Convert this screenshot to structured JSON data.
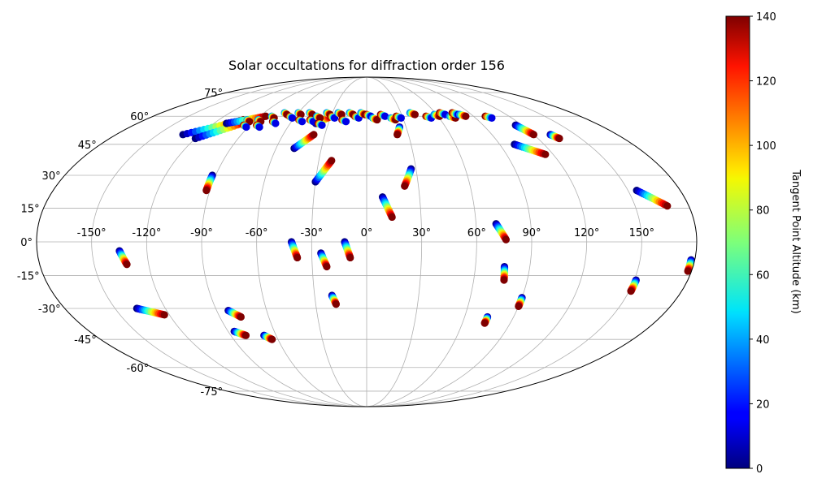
{
  "chart_data": {
    "type": "scatter",
    "projection": "mollweide",
    "title": "Solar occultations for diffraction order 156",
    "grid": true,
    "lon_ticks": [
      "-150°",
      "-120°",
      "-90°",
      "-60°",
      "-30°",
      "0°",
      "30°",
      "60°",
      "90°",
      "120°",
      "150°"
    ],
    "lon_tick_values": [
      -150,
      -120,
      -90,
      -60,
      -30,
      0,
      30,
      60,
      90,
      120,
      150
    ],
    "lat_ticks": [
      "75°",
      "60°",
      "45°",
      "30°",
      "15°",
      "0°",
      "-15°",
      "-30°",
      "-45°",
      "-60°",
      "-75°"
    ],
    "lat_tick_values": [
      75,
      60,
      45,
      30,
      15,
      0,
      -15,
      -30,
      -45,
      -60,
      -75
    ],
    "colorbar": {
      "label": "Tangent Point Altitude (km)",
      "min": 0,
      "max": 140,
      "ticks": [
        "0",
        "20",
        "40",
        "60",
        "80",
        "100",
        "120",
        "140"
      ],
      "tick_values": [
        0,
        20,
        40,
        60,
        80,
        100,
        120,
        140
      ],
      "colormap": "jet"
    },
    "point_series": [
      {
        "lon": -97,
        "lat": 58
      },
      {
        "lon": -95,
        "lat": 55
      },
      {
        "lon": -88,
        "lat": 58
      },
      {
        "lon": -85,
        "lat": 55
      },
      {
        "lon": -80,
        "lat": 60
      },
      {
        "lon": -75,
        "lat": 57
      },
      {
        "lon": -72,
        "lat": 62
      },
      {
        "lon": -65,
        "lat": 60
      },
      {
        "lon": -60,
        "lat": 62
      },
      {
        "lon": -55,
        "lat": 58
      },
      {
        "lon": -50,
        "lat": 62
      },
      {
        "lon": -46,
        "lat": 58
      },
      {
        "lon": -42,
        "lat": 60
      },
      {
        "lon": -38,
        "lat": 56
      },
      {
        "lon": -35,
        "lat": 62
      },
      {
        "lon": -30,
        "lat": 60
      },
      {
        "lon": -25,
        "lat": 62
      },
      {
        "lon": -20,
        "lat": 58
      },
      {
        "lon": -15,
        "lat": 62
      },
      {
        "lon": -10,
        "lat": 60
      },
      {
        "lon": -5,
        "lat": 62
      },
      {
        "lon": 0,
        "lat": 61
      },
      {
        "lon": 5,
        "lat": 59
      },
      {
        "lon": 12,
        "lat": 61
      },
      {
        "lon": 20,
        "lat": 59
      },
      {
        "lon": 25,
        "lat": 60
      },
      {
        "lon": 38,
        "lat": 62
      },
      {
        "lon": 50,
        "lat": 60
      },
      {
        "lon": 58,
        "lat": 61
      },
      {
        "lon": 64,
        "lat": 62
      },
      {
        "lon": 70,
        "lat": 60
      },
      {
        "lon": 75,
        "lat": 62
      },
      {
        "lon": 80,
        "lat": 61
      },
      {
        "lon": 100,
        "lat": 60
      }
    ],
    "tracks": [
      {
        "lon_start": -132,
        "lat_start": 50,
        "lon_end": -100,
        "lat_end": 58
      },
      {
        "lon_start": -120,
        "lat_start": 48,
        "lon_end": -95,
        "lat_end": 57
      },
      {
        "lon_start": -110,
        "lat_start": 56,
        "lon_end": -85,
        "lat_end": 60
      },
      {
        "lon_start": -92,
        "lat_start": 30,
        "lon_end": -92,
        "lat_end": 23
      },
      {
        "lon_start": -48,
        "lat_start": 43,
        "lon_end": -38,
        "lat_end": 50
      },
      {
        "lon_start": -30,
        "lat_start": 27,
        "lon_end": -22,
        "lat_end": 37
      },
      {
        "lon_start": -40,
        "lat_start": 56,
        "lon_end": -30,
        "lat_end": 60
      },
      {
        "lon_start": 25,
        "lat_start": 54,
        "lon_end": 22,
        "lat_end": 50
      },
      {
        "lon_start": 27,
        "lat_start": 33,
        "lon_end": 22,
        "lat_end": 25
      },
      {
        "lon_start": 9,
        "lat_start": 20,
        "lon_end": 14,
        "lat_end": 11
      },
      {
        "lon_start": 100,
        "lat_start": 45,
        "lon_end": 115,
        "lat_end": 40
      },
      {
        "lon_start": 115,
        "lat_start": 55,
        "lon_end": 120,
        "lat_end": 50
      },
      {
        "lon_start": 132,
        "lat_start": 50,
        "lon_end": 135,
        "lat_end": 48
      },
      {
        "lon_start": 155,
        "lat_start": 23,
        "lon_end": 168,
        "lat_end": 16
      },
      {
        "lon_start": 71,
        "lat_start": 8,
        "lon_end": 76,
        "lat_end": 1
      },
      {
        "lon_start": 76,
        "lat_start": -11,
        "lon_end": 77,
        "lat_end": -17
      },
      {
        "lon_start": 90,
        "lat_start": -25,
        "lon_end": 90,
        "lat_end": -29
      },
      {
        "lon_start": 74,
        "lat_start": -34,
        "lon_end": 74,
        "lat_end": -37
      },
      {
        "lon_start": 151,
        "lat_start": -17,
        "lon_end": 151,
        "lat_end": -22
      },
      {
        "lon_start": 178,
        "lat_start": -8,
        "lon_end": 178,
        "lat_end": -13
      },
      {
        "lon_start": -135,
        "lat_start": -4,
        "lon_end": -132,
        "lat_end": -10
      },
      {
        "lon_start": -41,
        "lat_start": 0,
        "lon_end": -38,
        "lat_end": -7
      },
      {
        "lon_start": -25,
        "lat_start": -5,
        "lon_end": -22,
        "lat_end": -11
      },
      {
        "lon_start": -12,
        "lat_start": 0,
        "lon_end": -9,
        "lat_end": -7
      },
      {
        "lon_start": -20,
        "lat_start": -24,
        "lon_end": -18,
        "lat_end": -28
      },
      {
        "lon_start": -137,
        "lat_start": -30,
        "lon_end": -123,
        "lat_end": -33
      },
      {
        "lon_start": -83,
        "lat_start": -31,
        "lon_end": -77,
        "lat_end": -34
      },
      {
        "lon_start": -86,
        "lat_start": -41,
        "lon_end": -80,
        "lat_end": -43
      },
      {
        "lon_start": -68,
        "lat_start": -43,
        "lon_end": -64,
        "lat_end": -45
      }
    ]
  }
}
